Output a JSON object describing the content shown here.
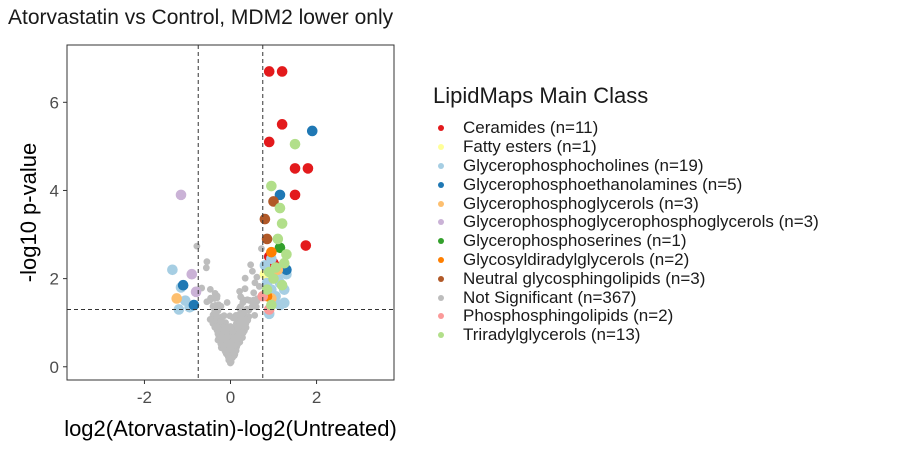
{
  "chart_data": {
    "type": "scatter",
    "title": "Atorvastatin vs Control, MDM2 lower only",
    "xlabel": "log2(Atorvastatin)-log2(Untreated)",
    "ylabel": "-log10 p-value",
    "xlim": [
      -3.8,
      3.8
    ],
    "ylim": [
      -0.3,
      7.3
    ],
    "xticks": [
      -2,
      0,
      2
    ],
    "yticks": [
      0,
      2,
      4,
      6
    ],
    "vlines": [
      -0.75,
      0.75
    ],
    "hline": 1.3,
    "legend_title": "LipidMaps Main Class",
    "legend_position": "right",
    "series": [
      {
        "name": "Ceramides (n=11)",
        "color": "#e31a1c",
        "points": [
          [
            0.9,
            6.7
          ],
          [
            1.2,
            6.7
          ],
          [
            1.2,
            5.5
          ],
          [
            0.9,
            5.1
          ],
          [
            1.5,
            4.5
          ],
          [
            1.8,
            4.5
          ],
          [
            1.5,
            3.9
          ],
          [
            1.75,
            2.75
          ],
          [
            0.9,
            2.5
          ],
          [
            1.15,
            2.25
          ],
          [
            1.0,
            2.35
          ]
        ]
      },
      {
        "name": "Fatty esters (n=1)",
        "color": "#ffff99",
        "points": [
          [
            0.8,
            2.1
          ]
        ]
      },
      {
        "name": "Glycerophosphocholines (n=19)",
        "color": "#a6cee3",
        "points": [
          [
            -1.35,
            2.2
          ],
          [
            -1.15,
            1.8
          ],
          [
            -1.05,
            1.5
          ],
          [
            -1.2,
            1.3
          ],
          [
            -0.95,
            1.35
          ],
          [
            0.8,
            2.3
          ],
          [
            0.95,
            1.75
          ],
          [
            1.05,
            1.6
          ],
          [
            1.15,
            1.9
          ],
          [
            1.25,
            1.45
          ],
          [
            0.9,
            1.2
          ],
          [
            0.95,
            2.45
          ],
          [
            1.0,
            1.5
          ],
          [
            1.25,
            1.75
          ],
          [
            0.85,
            1.9
          ],
          [
            1.15,
            1.4
          ],
          [
            1.3,
            2.1
          ],
          [
            0.9,
            1.65
          ],
          [
            1.1,
            2.0
          ]
        ]
      },
      {
        "name": "Glycerophosphoethanolamines (n=5)",
        "color": "#1f78b4",
        "points": [
          [
            1.9,
            5.35
          ],
          [
            1.15,
            3.9
          ],
          [
            1.3,
            2.2
          ],
          [
            -1.1,
            1.85
          ],
          [
            -0.85,
            1.4
          ]
        ]
      },
      {
        "name": "Glycerophosphoglycerols (n=3)",
        "color": "#fdbf6f",
        "points": [
          [
            -1.25,
            1.55
          ],
          [
            0.95,
            1.55
          ],
          [
            1.1,
            2.2
          ]
        ]
      },
      {
        "name": "Glycerophosphoglycerophosphoglycerols (n=3)",
        "color": "#cab2d6",
        "points": [
          [
            -1.15,
            3.9
          ],
          [
            -0.9,
            2.1
          ],
          [
            -0.8,
            1.7
          ]
        ]
      },
      {
        "name": "Glycerophosphoserines (n=1)",
        "color": "#33a02c",
        "points": [
          [
            1.15,
            2.7
          ]
        ]
      },
      {
        "name": "Glycosyldiradylglycerols (n=2)",
        "color": "#ff7f00",
        "points": [
          [
            0.85,
            1.6
          ],
          [
            0.95,
            2.6
          ]
        ]
      },
      {
        "name": "Neutral glycosphingolipids (n=3)",
        "color": "#b15928",
        "points": [
          [
            0.8,
            3.35
          ],
          [
            1.0,
            3.75
          ],
          [
            0.85,
            2.9
          ]
        ]
      },
      {
        "name": "Not Significant (n=367)",
        "color": "#bdbdbd",
        "points": "generated"
      },
      {
        "name": "Phosphosphingolipids (n=2)",
        "color": "#fb9a99",
        "points": [
          [
            0.75,
            1.6
          ],
          [
            0.9,
            1.3
          ]
        ]
      },
      {
        "name": "Triradylglycerols (n=13)",
        "color": "#b2df8a",
        "points": [
          [
            1.5,
            5.05
          ],
          [
            0.95,
            4.1
          ],
          [
            1.2,
            3.25
          ],
          [
            1.1,
            2.9
          ],
          [
            1.3,
            2.55
          ],
          [
            1.25,
            2.35
          ],
          [
            0.9,
            2.15
          ],
          [
            1.0,
            2.0
          ],
          [
            1.2,
            1.85
          ],
          [
            0.85,
            1.75
          ],
          [
            1.05,
            2.25
          ],
          [
            0.95,
            1.4
          ],
          [
            1.15,
            3.6
          ]
        ]
      }
    ]
  }
}
